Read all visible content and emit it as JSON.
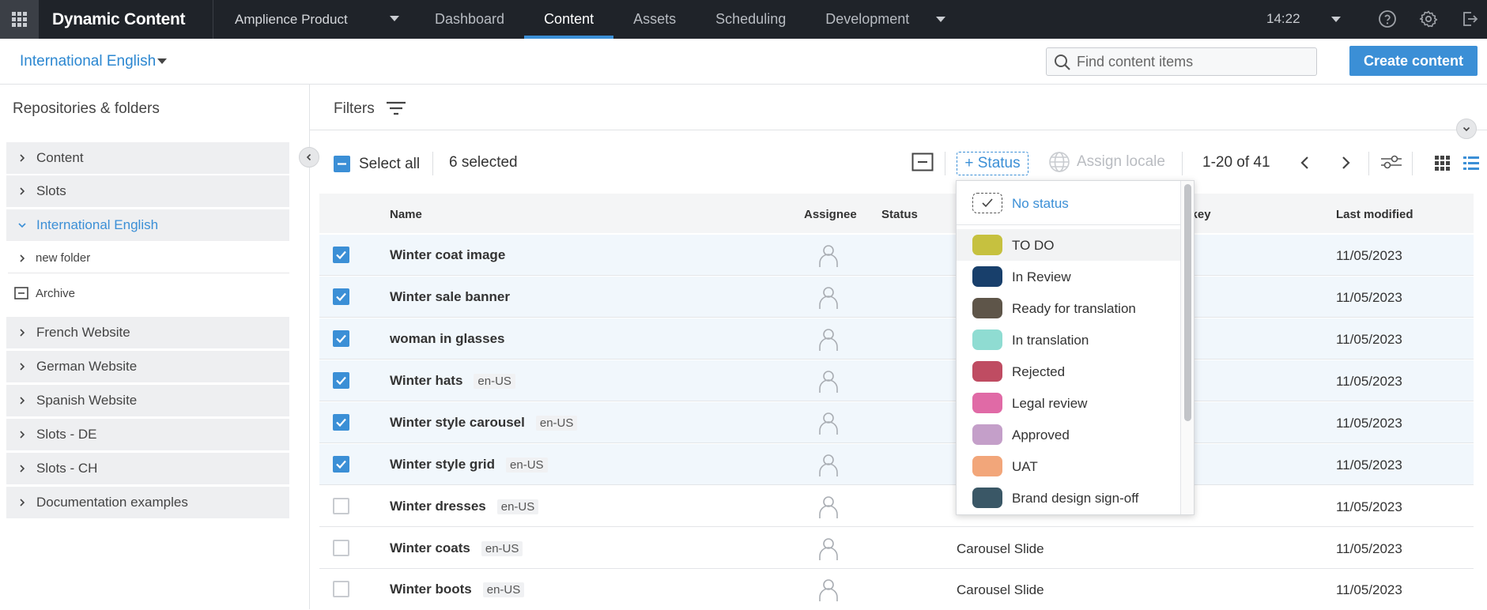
{
  "topbar": {
    "brand": "Dynamic Content",
    "hub": "Amplience Product",
    "tabs": [
      {
        "label": "Dashboard"
      },
      {
        "label": "Content"
      },
      {
        "label": "Assets"
      },
      {
        "label": "Scheduling"
      },
      {
        "label": "Development"
      }
    ],
    "time": "14:22"
  },
  "subbar": {
    "locale": "International English",
    "search_placeholder": "Find content items",
    "create_label": "Create content"
  },
  "sidebar": {
    "title": "Repositories & folders",
    "items": [
      {
        "label": "Content"
      },
      {
        "label": "Slots"
      },
      {
        "label": "International English"
      },
      {
        "label": "new folder"
      },
      {
        "label": "Archive"
      },
      {
        "label": "French Website"
      },
      {
        "label": "German Website"
      },
      {
        "label": "Spanish Website"
      },
      {
        "label": "Slots - DE"
      },
      {
        "label": "Slots - CH"
      },
      {
        "label": "Documentation examples"
      }
    ]
  },
  "filters": {
    "label": "Filters"
  },
  "toolbar": {
    "select_all": "Select all",
    "selected_count": "6 selected",
    "status_btn": "+ Status",
    "assign_locale": "Assign locale",
    "pager": "1-20 of 41"
  },
  "table": {
    "headers": {
      "name": "Name",
      "assignee": "Assignee",
      "status": "Status",
      "key": "y key",
      "modified": "Last modified"
    },
    "rows": [
      {
        "name": "Winter coat image",
        "locale": "",
        "type": "",
        "date": "11/05/2023",
        "checked": true
      },
      {
        "name": "Winter sale banner",
        "locale": "",
        "type": "",
        "date": "11/05/2023",
        "checked": true
      },
      {
        "name": "woman in glasses",
        "locale": "",
        "type": "",
        "date": "11/05/2023",
        "checked": true
      },
      {
        "name": "Winter hats",
        "locale": "en-US",
        "type": "",
        "date": "11/05/2023",
        "checked": true
      },
      {
        "name": "Winter style carousel",
        "locale": "en-US",
        "type": "",
        "date": "11/05/2023",
        "checked": true
      },
      {
        "name": "Winter style grid",
        "locale": "en-US",
        "type": "",
        "date": "11/05/2023",
        "checked": true
      },
      {
        "name": "Winter dresses",
        "locale": "en-US",
        "type": "",
        "date": "11/05/2023",
        "checked": false
      },
      {
        "name": "Winter coats",
        "locale": "en-US",
        "type": "Carousel Slide",
        "date": "11/05/2023",
        "checked": false
      },
      {
        "name": "Winter boots",
        "locale": "en-US",
        "type": "Carousel Slide",
        "date": "11/05/2023",
        "checked": false
      }
    ]
  },
  "status_dropdown": {
    "no_status": "No status",
    "options": [
      {
        "label": "TO DO",
        "color": "#c6c13f"
      },
      {
        "label": "In Review",
        "color": "#183f6b"
      },
      {
        "label": "Ready for translation",
        "color": "#5e5549"
      },
      {
        "label": "In translation",
        "color": "#8fdcd2"
      },
      {
        "label": "Rejected",
        "color": "#bf4c62"
      },
      {
        "label": "Legal review",
        "color": "#e06aa6"
      },
      {
        "label": "Approved",
        "color": "#c49fc9"
      },
      {
        "label": "UAT",
        "color": "#f2a67a"
      },
      {
        "label": "Brand design sign-off",
        "color": "#3a5766"
      }
    ]
  },
  "colors": {
    "accent": "#3b8fd6",
    "topbar": "#1f2329"
  }
}
